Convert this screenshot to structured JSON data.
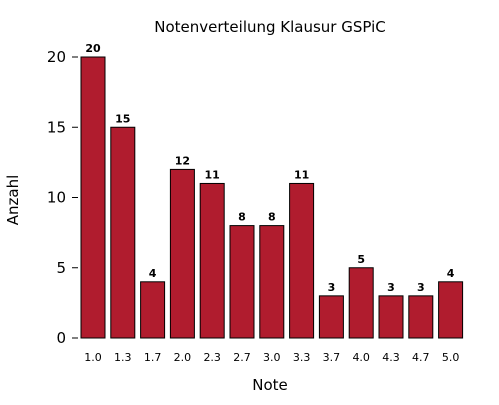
{
  "chart_data": {
    "type": "bar",
    "title": "Notenverteilung Klausur GSPiC",
    "xlabel": "Note",
    "ylabel": "Anzahl",
    "categories": [
      "1.0",
      "1.3",
      "1.7",
      "2.0",
      "2.3",
      "2.7",
      "3.0",
      "3.3",
      "3.7",
      "4.0",
      "4.3",
      "4.7",
      "5.0"
    ],
    "values": [
      20,
      15,
      4,
      12,
      11,
      8,
      8,
      11,
      3,
      5,
      3,
      3,
      4
    ],
    "ylim": [
      0,
      20
    ],
    "yticks": [
      0,
      5,
      10,
      15,
      20
    ],
    "grid": false,
    "bar_color": "#b01c2e",
    "data_labels": true
  }
}
